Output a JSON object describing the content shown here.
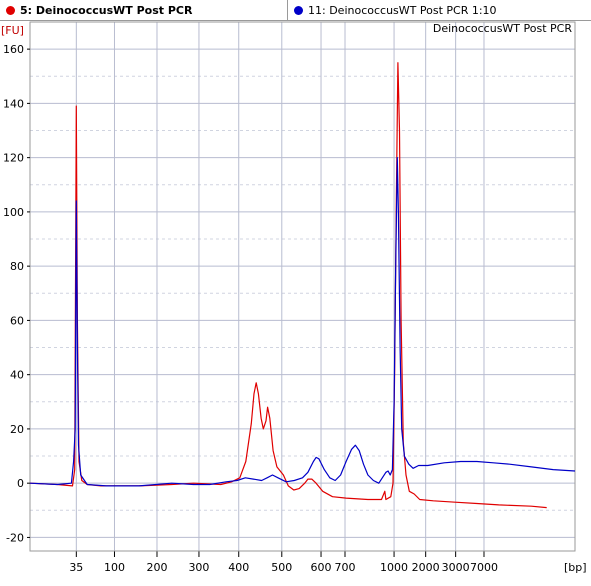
{
  "tabs": [
    {
      "label": "5: DeinococcusWT Post PCR",
      "color": "#e00000",
      "active": true
    },
    {
      "label": "11: DeinococcusWT Post PCR 1:10",
      "color": "#0000c8",
      "active": false
    }
  ],
  "chart_data": {
    "type": "line",
    "title": "DeinococcusWT Post PCR",
    "ylabel": "[FU]",
    "xlabel": "[bp]",
    "ylim": [
      -25,
      170
    ],
    "yticks": [
      -20,
      0,
      20,
      40,
      60,
      80,
      100,
      120,
      140,
      160
    ],
    "xlim": [
      0,
      100
    ],
    "xticks": [
      {
        "pos": 8.5,
        "label": "35"
      },
      {
        "pos": 15.5,
        "label": "100"
      },
      {
        "pos": 23.3,
        "label": "200"
      },
      {
        "pos": 31.0,
        "label": "300"
      },
      {
        "pos": 38.3,
        "label": "400"
      },
      {
        "pos": 46.2,
        "label": "500"
      },
      {
        "pos": 53.4,
        "label": "600"
      },
      {
        "pos": 57.8,
        "label": "700"
      },
      {
        "pos": 66.8,
        "label": "1000"
      },
      {
        "pos": 72.6,
        "label": "2000"
      },
      {
        "pos": 78.1,
        "label": "3000"
      },
      {
        "pos": 83.3,
        "label": "7000"
      }
    ],
    "xticks_labeled": [
      {
        "pos": 8.5,
        "label": "35"
      },
      {
        "pos": 15.5,
        "label": "100"
      },
      {
        "pos": 23.3,
        "label": "200"
      },
      {
        "pos": 31.0,
        "label": "300"
      },
      {
        "pos": 38.3,
        "label": "400"
      },
      {
        "pos": 46.2,
        "label": "500"
      },
      {
        "pos": 53.4,
        "label": "600"
      },
      {
        "pos": 57.8,
        "label": "700"
      },
      {
        "pos": 66.8,
        "label": "1000"
      },
      {
        "pos": 72.6,
        "label": "2000"
      },
      {
        "pos": 78.1,
        "label": "3000"
      },
      {
        "pos": 83.3,
        "label": "7000"
      }
    ],
    "grid": true,
    "series": [
      {
        "name": "5: DeinococcusWT Post PCR",
        "color": "#e00000",
        "points": [
          [
            0,
            0
          ],
          [
            5,
            -0.5
          ],
          [
            7.8,
            -1
          ],
          [
            8.2,
            5
          ],
          [
            8.5,
            139
          ],
          [
            8.7,
            60
          ],
          [
            9.0,
            8
          ],
          [
            9.5,
            1
          ],
          [
            10.5,
            -0.5
          ],
          [
            13,
            -1
          ],
          [
            20,
            -1
          ],
          [
            26,
            -0.5
          ],
          [
            30,
            0
          ],
          [
            35,
            -0.5
          ],
          [
            37,
            0.5
          ],
          [
            38.5,
            2
          ],
          [
            39.6,
            8
          ],
          [
            40.6,
            22
          ],
          [
            41.1,
            33
          ],
          [
            41.5,
            37
          ],
          [
            41.9,
            33
          ],
          [
            42.4,
            24
          ],
          [
            42.8,
            20
          ],
          [
            43.3,
            23
          ],
          [
            43.6,
            28
          ],
          [
            44.0,
            24
          ],
          [
            44.6,
            12
          ],
          [
            45.3,
            6
          ],
          [
            46.5,
            3
          ],
          [
            47.4,
            -1
          ],
          [
            48.4,
            -2.5
          ],
          [
            49.4,
            -2
          ],
          [
            50.4,
            0
          ],
          [
            51.0,
            1.5
          ],
          [
            51.7,
            1.5
          ],
          [
            52.5,
            0
          ],
          [
            53.7,
            -3
          ],
          [
            55.5,
            -5
          ],
          [
            58,
            -5.5
          ],
          [
            62,
            -6
          ],
          [
            64.5,
            -6
          ],
          [
            65.1,
            -3
          ],
          [
            65.3,
            -6
          ],
          [
            66.2,
            -5
          ],
          [
            66.6,
            0
          ],
          [
            66.9,
            40
          ],
          [
            67.2,
            100
          ],
          [
            67.5,
            155
          ],
          [
            67.8,
            130
          ],
          [
            68.1,
            60
          ],
          [
            68.5,
            15
          ],
          [
            69.0,
            3
          ],
          [
            69.6,
            -3
          ],
          [
            70.5,
            -4
          ],
          [
            71.5,
            -6
          ],
          [
            74,
            -6.5
          ],
          [
            78,
            -7
          ],
          [
            82,
            -7.5
          ],
          [
            86,
            -8
          ],
          [
            92,
            -8.5
          ],
          [
            94.8,
            -9
          ]
        ]
      },
      {
        "name": "11: DeinococcusWT Post PCR 1:10",
        "color": "#0000c8",
        "points": [
          [
            0,
            0
          ],
          [
            5,
            -0.5
          ],
          [
            7.6,
            0
          ],
          [
            8.0,
            8
          ],
          [
            8.3,
            20
          ],
          [
            8.5,
            104
          ],
          [
            8.7,
            50
          ],
          [
            8.9,
            14
          ],
          [
            9.3,
            3
          ],
          [
            10.5,
            -0.5
          ],
          [
            14,
            -1
          ],
          [
            20,
            -1
          ],
          [
            26,
            0
          ],
          [
            30,
            -0.5
          ],
          [
            33,
            -0.5
          ],
          [
            36,
            0.5
          ],
          [
            38,
            1
          ],
          [
            39.5,
            2
          ],
          [
            41,
            1.5
          ],
          [
            42.5,
            1
          ],
          [
            43.5,
            2
          ],
          [
            44.5,
            3
          ],
          [
            45.5,
            2
          ],
          [
            47,
            0.5
          ],
          [
            48.5,
            1
          ],
          [
            50,
            2
          ],
          [
            51,
            4
          ],
          [
            52,
            8
          ],
          [
            52.5,
            9.5
          ],
          [
            53,
            9
          ],
          [
            54,
            5
          ],
          [
            55,
            2
          ],
          [
            56,
            1
          ],
          [
            57,
            3
          ],
          [
            58,
            8
          ],
          [
            59,
            12.5
          ],
          [
            59.7,
            14
          ],
          [
            60.4,
            12
          ],
          [
            61.2,
            7
          ],
          [
            62,
            3
          ],
          [
            63,
            1
          ],
          [
            64,
            0
          ],
          [
            64.5,
            1.5
          ],
          [
            65.3,
            4
          ],
          [
            65.7,
            4.5
          ],
          [
            66.1,
            3
          ],
          [
            66.5,
            5
          ],
          [
            66.8,
            30
          ],
          [
            67.1,
            80
          ],
          [
            67.4,
            120
          ],
          [
            67.6,
            100
          ],
          [
            67.9,
            50
          ],
          [
            68.2,
            20
          ],
          [
            68.7,
            10
          ],
          [
            69.5,
            7
          ],
          [
            70.3,
            5.5
          ],
          [
            71.3,
            6.5
          ],
          [
            73,
            6.5
          ],
          [
            76,
            7.5
          ],
          [
            79,
            8
          ],
          [
            82,
            8
          ],
          [
            85,
            7.5
          ],
          [
            88,
            7
          ],
          [
            92,
            6
          ],
          [
            96,
            5
          ],
          [
            100,
            4.5
          ]
        ]
      }
    ]
  }
}
